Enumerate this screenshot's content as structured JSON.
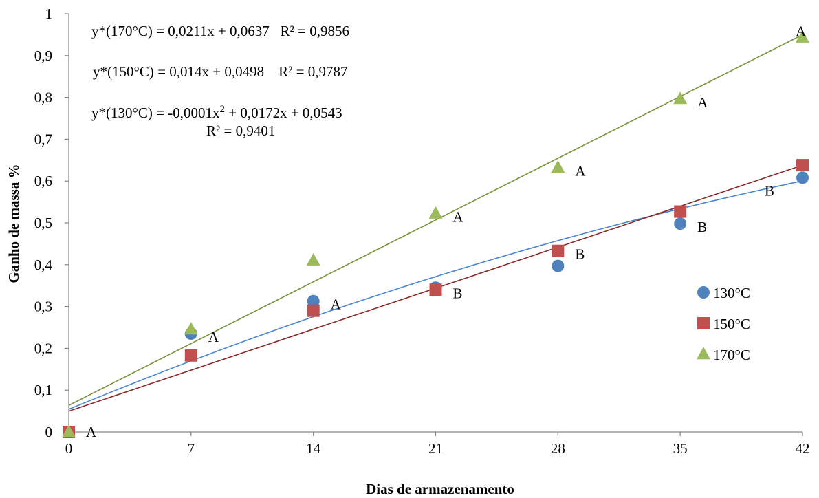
{
  "chart_data": {
    "type": "scatter",
    "xlabel": "Dias de armazenamento",
    "ylabel": "Ganho de massa %",
    "xlim": [
      0,
      42
    ],
    "ylim": [
      0,
      1
    ],
    "x_ticks": [
      0,
      7,
      14,
      21,
      28,
      35,
      42
    ],
    "x_tick_labels": [
      "0",
      "7",
      "14",
      "21",
      "28",
      "35",
      "42"
    ],
    "y_ticks": [
      0,
      0.1,
      0.2,
      0.3,
      0.4,
      0.5,
      0.6,
      0.7,
      0.8,
      0.9,
      1
    ],
    "y_tick_labels": [
      "0",
      "0,1",
      "0,2",
      "0,3",
      "0,4",
      "0,5",
      "0,6",
      "0,7",
      "0,8",
      "0,9",
      "1"
    ],
    "grid": false,
    "legend_position": "right",
    "series": [
      {
        "name": "130°C",
        "color": "#4F81BD",
        "marker": "circle",
        "x": [
          0,
          7,
          14,
          21,
          28,
          35,
          42
        ],
        "y": [
          0,
          0.235,
          0.313,
          0.345,
          0.397,
          0.498,
          0.608
        ],
        "trend": {
          "type": "poly2",
          "a": -0.0001,
          "b": 0.0172,
          "c": 0.0543,
          "color": "#4A86D0"
        }
      },
      {
        "name": "150°C",
        "color": "#C0504D",
        "marker": "square",
        "x": [
          0,
          7,
          14,
          21,
          28,
          35,
          42
        ],
        "y": [
          0,
          0.183,
          0.29,
          0.34,
          0.433,
          0.527,
          0.638
        ],
        "trend": {
          "type": "linear",
          "a": 0.014,
          "b": 0.0498,
          "color": "#8B2A2A"
        }
      },
      {
        "name": "170°C",
        "color": "#9BBB59",
        "marker": "triangle",
        "x": [
          0,
          7,
          14,
          21,
          28,
          35,
          42
        ],
        "y": [
          0,
          0.245,
          0.41,
          0.522,
          0.632,
          0.796,
          0.943
        ],
        "trend": {
          "type": "linear",
          "a": 0.0211,
          "b": 0.0637,
          "color": "#76923C"
        }
      }
    ],
    "letters": [
      {
        "text": "A",
        "x": 0,
        "y": 0
      },
      {
        "text": "A",
        "x": 7,
        "y": 0.235
      },
      {
        "text": "A",
        "x": 14,
        "y": 0.313
      },
      {
        "text": "A",
        "x": 21,
        "y": 0.522
      },
      {
        "text": "A",
        "x": 28,
        "y": 0.632
      },
      {
        "text": "A",
        "x": 35,
        "y": 0.796
      },
      {
        "text": "A",
        "x": 42,
        "y": 0.943
      },
      {
        "text": "B",
        "x": 21,
        "y": 0.34
      },
      {
        "text": "B",
        "x": 28,
        "y": 0.433
      },
      {
        "text": "B",
        "x": 35,
        "y": 0.498
      },
      {
        "text": "B",
        "x": 42,
        "y": 0.608
      }
    ],
    "equations": {
      "eq170": "y*(170°C) = 0,0211x + 0,0637   R² = 0,9856",
      "eq150": "y*(150°C) = 0,014x + 0,0498    R² = 0,9787",
      "eq130_main": "y*(130°C) = -0,0001x",
      "eq130_sup": "2",
      "eq130_rest": " + 0,0172x + 0,0543",
      "eq130_r2": "R² = 0,9401"
    }
  }
}
